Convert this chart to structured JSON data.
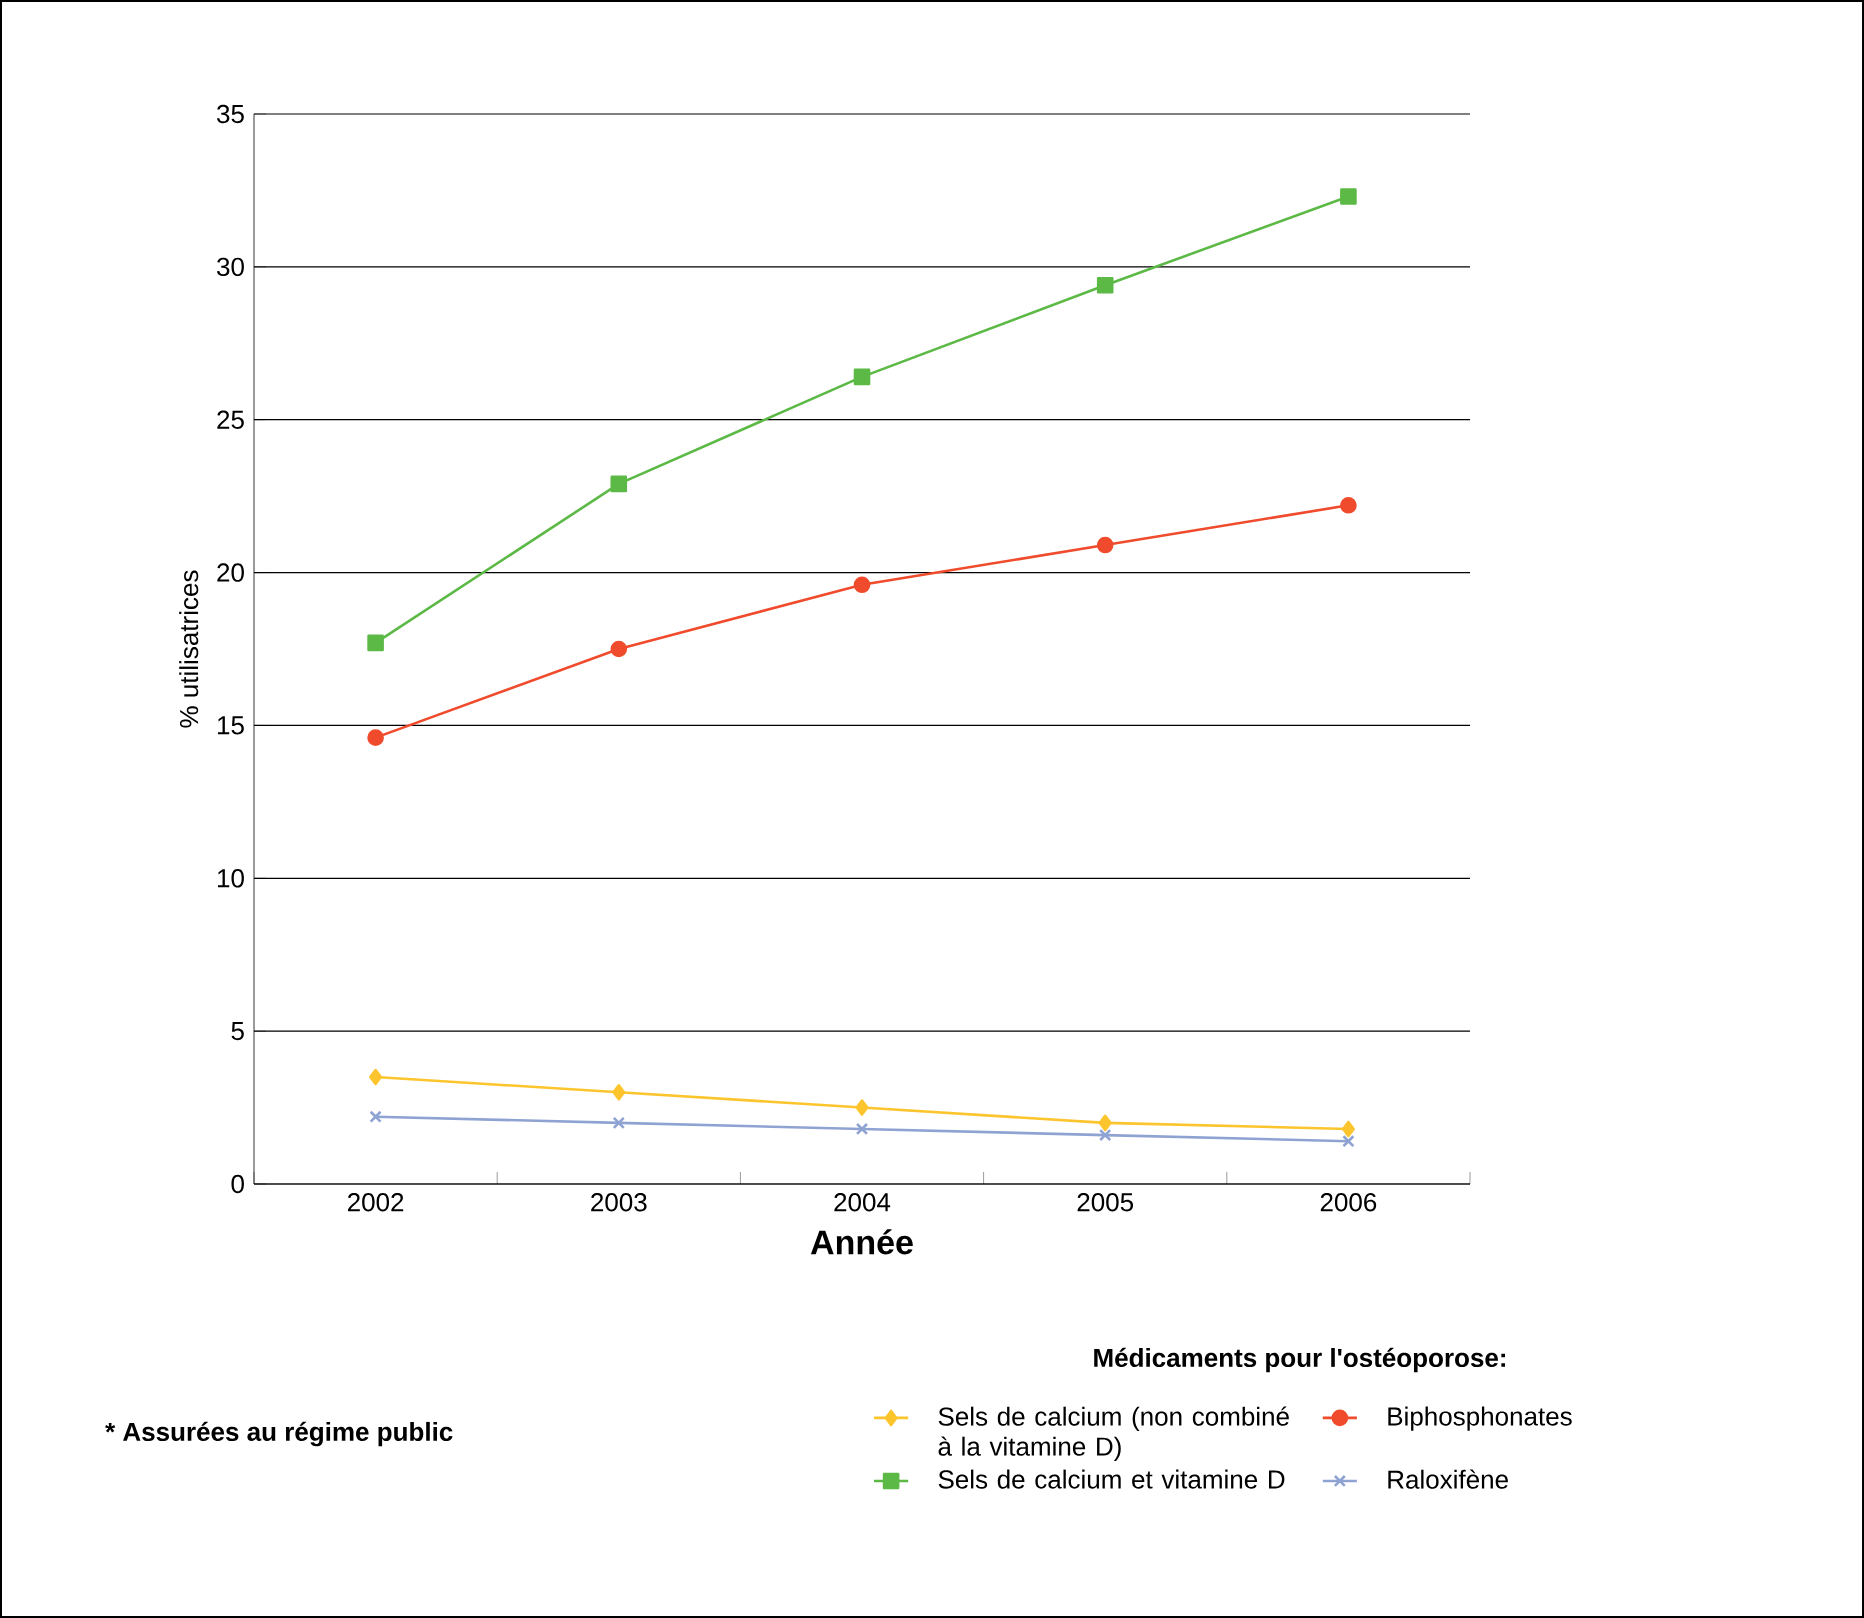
{
  "chart_data": {
    "type": "line",
    "ylabel": "% utilisatrices",
    "xlabel": "Année",
    "legend_title": "Médicaments pour l'ostéoporose:",
    "categories": [
      "2002",
      "2003",
      "2004",
      "2005",
      "2006"
    ],
    "ylim": [
      0,
      35
    ],
    "yticks": [
      0,
      5,
      10,
      15,
      20,
      25,
      30,
      35
    ],
    "grid": "y",
    "legend": "bottom right",
    "annotations": [
      "* Assurées au régime public"
    ],
    "series": [
      {
        "name": "Sels de calcium (non combiné à la vitamine D)",
        "color": "#fcc42d",
        "marker": "diamond",
        "values": [
          3.5,
          3.0,
          2.5,
          2.0,
          1.8
        ]
      },
      {
        "name": "Biphosphonates",
        "color": "#ef4b2c",
        "marker": "circle",
        "values": [
          14.6,
          17.5,
          19.6,
          20.9,
          22.2
        ]
      },
      {
        "name": "Sels de calcium et vitamine D",
        "color": "#5cb946",
        "marker": "square",
        "values": [
          17.7,
          22.9,
          26.4,
          29.4,
          32.3
        ]
      },
      {
        "name": "Raloxifène",
        "color": "#8fa3d3",
        "marker": "cross",
        "values": [
          2.2,
          2.0,
          1.8,
          1.6,
          1.4
        ]
      }
    ]
  }
}
